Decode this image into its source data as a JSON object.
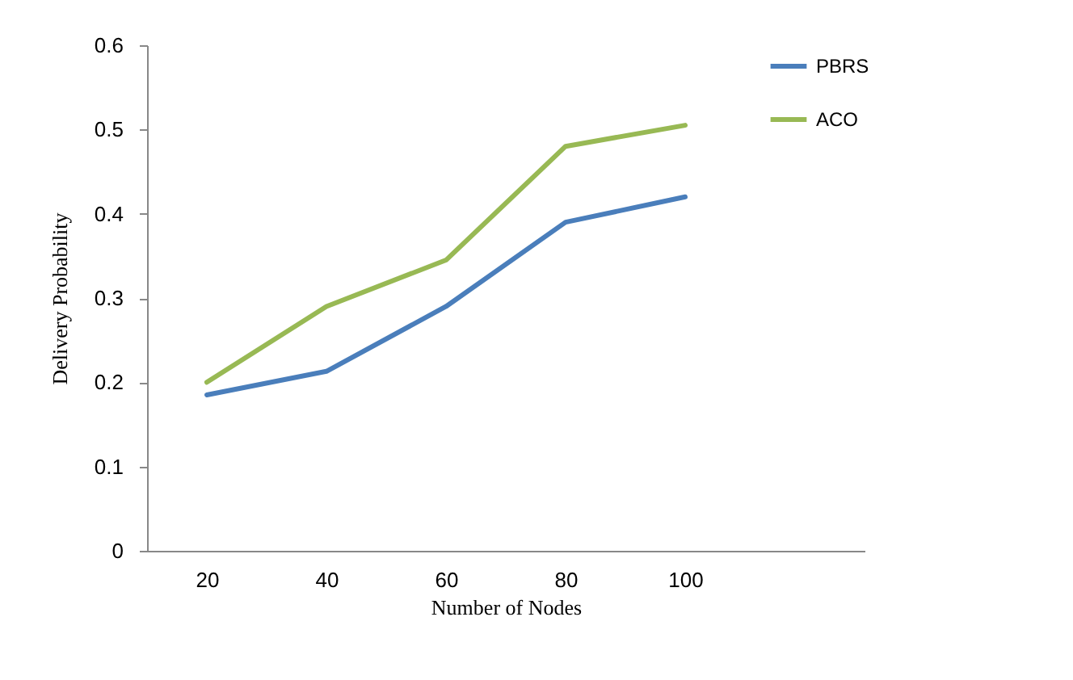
{
  "chart_data": {
    "type": "line",
    "xlabel": "Number of Nodes",
    "ylabel": "Delivery Probability",
    "categories": [
      "20",
      "40",
      "60",
      "80",
      "100"
    ],
    "series": [
      {
        "name": "PBRS",
        "color": "#4a7ebb",
        "values": [
          0.185,
          0.213,
          0.29,
          0.39,
          0.42
        ]
      },
      {
        "name": "ACO",
        "color": "#98b954",
        "values": [
          0.2,
          0.29,
          0.345,
          0.48,
          0.505
        ]
      }
    ],
    "ylim": [
      0,
      0.6
    ],
    "yticks": [
      0,
      0.1,
      0.2,
      0.3,
      0.4,
      0.5,
      0.6
    ],
    "grid": false,
    "legend": "top right",
    "marker": "none",
    "line_style": "solid"
  }
}
